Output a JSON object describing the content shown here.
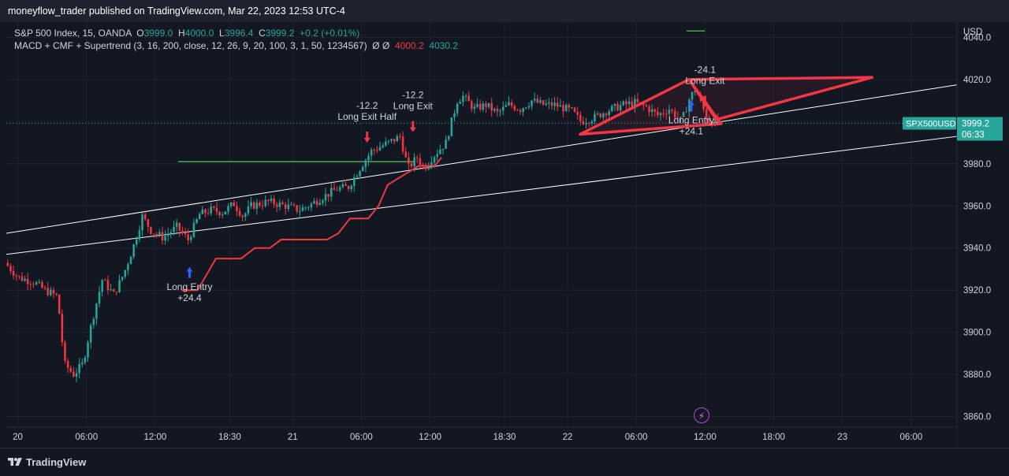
{
  "header": {
    "published_text": "moneyflow_trader published on TradingView.com, Mar 22, 2023 12:53 UTC-4"
  },
  "legend": {
    "symbol_text": "S&P 500 Index, 15, OANDA",
    "o_label": "O",
    "o_value": "3999.0",
    "h_label": "H",
    "h_value": "4000.0",
    "l_label": "L",
    "l_value": "3996.4",
    "c_label": "C",
    "c_value": "3999.2",
    "change": "+0.2 (+0.01%)",
    "indicator_text": "MACD + CMF + Supertrend (3, 16, 200, close, 12, 26, 9, 20, 100, 3, 1, 50, 1234567)",
    "indicator_symbols": "Ø Ø",
    "indicator_value_1": "4000.2",
    "indicator_value_2": "4030.2"
  },
  "price_axis": {
    "currency": "USD",
    "ticks": [
      "4040.0",
      "4020.0",
      "4000.0",
      "3980.0",
      "3960.0",
      "3940.0",
      "3920.0",
      "3900.0",
      "3880.0",
      "3860.0"
    ]
  },
  "price_tag": {
    "symbol": "SPX500USD",
    "price": "3999.2",
    "countdown": "06:33"
  },
  "time_axis": {
    "ticks": [
      "20",
      "06:00",
      "12:00",
      "18:30",
      "21",
      "06:00",
      "12:00",
      "18:30",
      "22",
      "06:00",
      "12:00",
      "18:00",
      "23",
      "06:00"
    ]
  },
  "signals": [
    {
      "kind": "entry",
      "text": "Long Entry",
      "value": "+24.4"
    },
    {
      "kind": "exit",
      "text": "Long Exit Half",
      "value": "-12.2"
    },
    {
      "kind": "exit",
      "text": "Long Exit",
      "value": "-12.2"
    },
    {
      "kind": "exit",
      "text": "Long Exit",
      "value": "-24.1"
    },
    {
      "kind": "entry",
      "text": "Long Entry",
      "value": "+24.1"
    }
  ],
  "footer": {
    "brand": "TradingView"
  },
  "colors": {
    "up": "#26a69a",
    "down": "#f23645",
    "supertrend": "#f23645",
    "channel": "#ffffff",
    "level": "#4caf50",
    "pattern": "#f23645",
    "entry_arrow": "#2962ff",
    "bg": "#131722"
  },
  "chart_data": {
    "type": "candlestick",
    "symbol": "S&P 500 Index",
    "interval": "15",
    "ylim": [
      3855,
      4045
    ],
    "y_ticks": [
      3860,
      3880,
      3900,
      3920,
      3940,
      3960,
      3980,
      4000,
      4020,
      4040
    ],
    "x_tick_labels": [
      "20",
      "06:00",
      "12:00",
      "18:30",
      "21",
      "06:00",
      "12:00",
      "18:30",
      "22",
      "06:00",
      "12:00",
      "18:00",
      "23",
      "06:00"
    ],
    "x_range_hours": [
      -1,
      82
    ],
    "x_tick_hours": [
      0,
      6,
      12,
      18.5,
      24,
      30,
      36,
      42.5,
      48,
      54,
      60,
      66,
      72,
      78
    ],
    "price_path": [
      [
        -1,
        3933
      ],
      [
        0.2,
        3926
      ],
      [
        1.5,
        3924
      ],
      [
        2.5,
        3920
      ],
      [
        3.6,
        3917
      ],
      [
        4.2,
        3885
      ],
      [
        5,
        3880
      ],
      [
        5.8,
        3885
      ],
      [
        6.6,
        3905
      ],
      [
        7.5,
        3925
      ],
      [
        8.5,
        3918
      ],
      [
        9.4,
        3928
      ],
      [
        10.3,
        3942
      ],
      [
        11,
        3955
      ],
      [
        11.8,
        3948
      ],
      [
        12.8,
        3945
      ],
      [
        14,
        3950
      ],
      [
        15,
        3944
      ],
      [
        16,
        3956
      ],
      [
        17,
        3958
      ],
      [
        18,
        3957
      ],
      [
        19,
        3961
      ],
      [
        19.8,
        3955
      ],
      [
        20.5,
        3960
      ],
      [
        22,
        3962
      ],
      [
        23.5,
        3960
      ],
      [
        24.7,
        3958
      ],
      [
        25.5,
        3960
      ],
      [
        27,
        3965
      ],
      [
        28,
        3968
      ],
      [
        29,
        3969
      ],
      [
        30,
        3978
      ],
      [
        31,
        3986
      ],
      [
        32.5,
        3990
      ],
      [
        33.5,
        3993
      ],
      [
        34.2,
        3978
      ],
      [
        35,
        3983
      ],
      [
        35.6,
        3978
      ],
      [
        36.3,
        3983
      ],
      [
        37.5,
        3990
      ],
      [
        38.5,
        4010
      ],
      [
        39,
        4012
      ],
      [
        40,
        4006
      ],
      [
        41,
        4008
      ],
      [
        42,
        4004
      ],
      [
        43,
        4008
      ],
      [
        44,
        4006
      ],
      [
        45,
        4010
      ],
      [
        46,
        4008
      ],
      [
        47,
        4008
      ],
      [
        48.5,
        4005
      ],
      [
        49.3,
        4000
      ],
      [
        50.5,
        4002
      ],
      [
        51.5,
        4005
      ],
      [
        53,
        4008
      ],
      [
        54,
        4009
      ],
      [
        55,
        4007
      ],
      [
        56,
        4003
      ],
      [
        57,
        4006
      ],
      [
        58.1,
        4000
      ],
      [
        58.7,
        4010
      ],
      [
        59.3,
        4016
      ],
      [
        59.8,
        4008
      ],
      [
        60.5,
        4000
      ],
      [
        61,
        4000
      ]
    ],
    "supertrend": [
      [
        14.3,
        3920
      ],
      [
        15.7,
        3920
      ],
      [
        17.3,
        3935
      ],
      [
        19.5,
        3935
      ],
      [
        20.7,
        3940
      ],
      [
        22,
        3940
      ],
      [
        23,
        3944
      ],
      [
        27,
        3944
      ],
      [
        28,
        3947
      ],
      [
        29,
        3954
      ],
      [
        30.6,
        3954
      ],
      [
        31.5,
        3960
      ],
      [
        32.3,
        3970
      ],
      [
        33.5,
        3974
      ],
      [
        35,
        3979
      ],
      [
        36.4,
        3979
      ],
      [
        37,
        3983
      ]
    ],
    "channel_lines": [
      [
        [
          -1,
          3947
        ],
        [
          85,
          4020
        ]
      ],
      [
        [
          -1,
          3937
        ],
        [
          85,
          3995
        ]
      ]
    ],
    "horizontal_levels": [
      {
        "from_hour": 14,
        "to_hour": 34.7,
        "price": 3981
      },
      {
        "from_hour": 58.4,
        "to_hour": 60,
        "price": 4043
      }
    ],
    "current_price": 3999.2,
    "pattern": [
      [
        [
          49.1,
          3994
        ],
        [
          58.6,
          4020
        ],
        [
          61.4,
          3999
        ],
        [
          49.1,
          3994
        ]
      ],
      [
        [
          58.6,
          4020
        ],
        [
          61,
          4001
        ],
        [
          74.6,
          4021
        ],
        [
          58.6,
          4020
        ]
      ]
    ],
    "signal_points": [
      {
        "hour": 15,
        "price": 3931,
        "label": "Long Entry",
        "pnl": "+24.4",
        "type": "entry"
      },
      {
        "hour": 30.5,
        "price": 3990,
        "label": "Long Exit Half",
        "pnl": "-12.2",
        "type": "exit"
      },
      {
        "hour": 34.5,
        "price": 3995,
        "label": "Long Exit",
        "pnl": "-12.2",
        "type": "exit"
      },
      {
        "hour": 60,
        "price": 4007,
        "label": "Long Exit",
        "pnl": "-24.1",
        "type": "exit"
      },
      {
        "hour": 58.8,
        "price": 4010,
        "label": "Long Entry",
        "pnl": "+24.1",
        "type": "entry"
      }
    ]
  }
}
